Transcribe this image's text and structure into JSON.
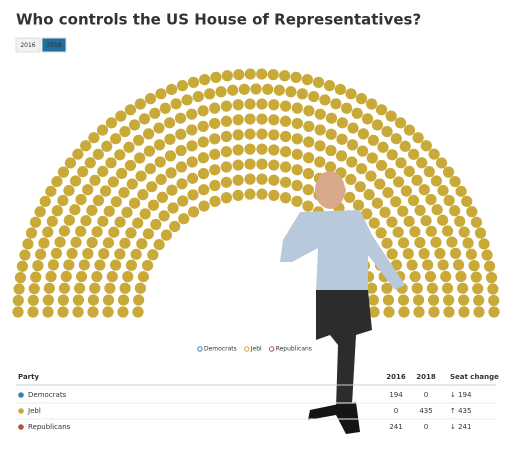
{
  "chart_data": {
    "type": "parliament",
    "title": "Who controls the US House of Representatives?",
    "tabs": [
      "2016",
      "2018"
    ],
    "active_tab": 1,
    "series": [
      {
        "name": "Democrats",
        "color": "#3a7fb0",
        "values": [
          194,
          0
        ]
      },
      {
        "name": "Jebl",
        "color": "#c9aa38",
        "values": [
          0,
          435
        ]
      },
      {
        "name": "Republicans",
        "color": "#b5533c",
        "values": [
          241,
          0
        ]
      }
    ]
  },
  "table": {
    "headers": [
      "Party",
      "2016",
      "2018",
      "Seat change"
    ],
    "change_labels": [
      "↓ 194",
      "↑ 435",
      "↓ 241"
    ]
  }
}
